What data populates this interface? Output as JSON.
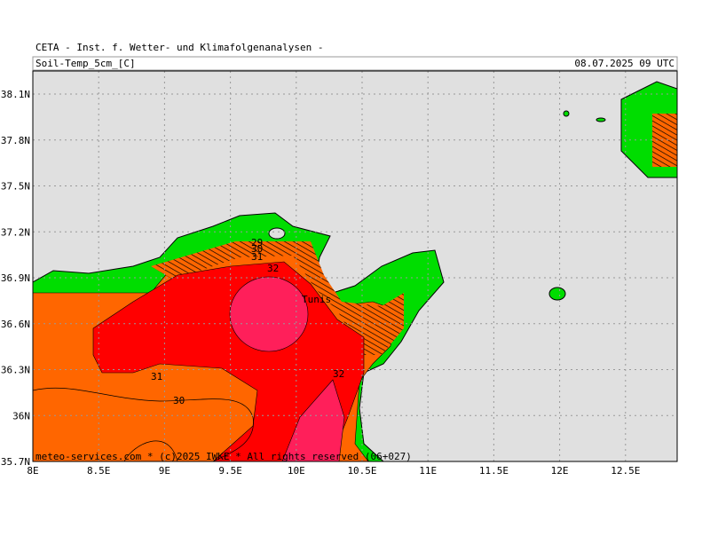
{
  "header": {
    "title": "CETA - Inst. f. Wetter- und Klimafolgenanalysen -",
    "variable": "Soil-Temp_5cm_[C]",
    "valid_time": "08.07.2025 09 UTC"
  },
  "axes": {
    "lat_labels": [
      "38.1N",
      "37.8N",
      "37.5N",
      "37.2N",
      "36.9N",
      "36.6N",
      "36.3N",
      "36N",
      "35.7N"
    ],
    "lon_labels": [
      "8E",
      "8.5E",
      "9E",
      "9.5E",
      "10E",
      "10.5E",
      "11E",
      "11.5E",
      "12E",
      "12.5E"
    ]
  },
  "contour_labels": [
    "29",
    "30",
    "31",
    "32",
    "31",
    "30",
    "32"
  ],
  "place_label": "Tunis",
  "footer": "meteo-services.com * (c)2025 IWKE * All rights reserved (06+027)"
}
